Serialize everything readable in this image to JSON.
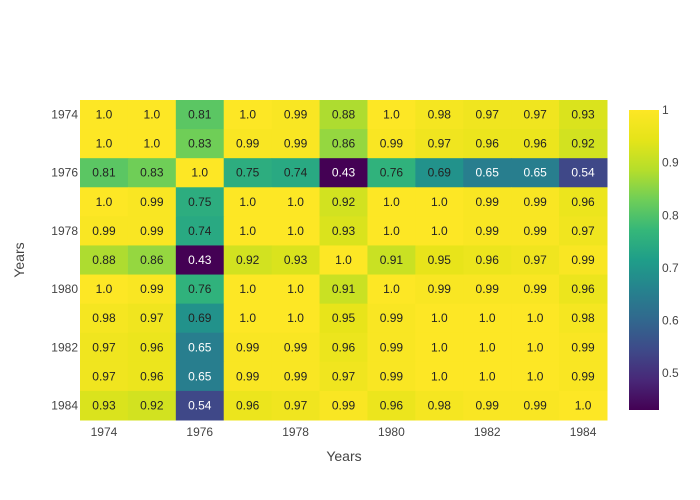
{
  "chart_data": {
    "type": "heatmap",
    "xlabel": "Years",
    "ylabel": "Years",
    "x": [
      1974,
      1975,
      1976,
      1977,
      1978,
      1979,
      1980,
      1981,
      1982,
      1983,
      1984
    ],
    "y": [
      1974,
      1975,
      1976,
      1977,
      1978,
      1979,
      1980,
      1981,
      1982,
      1983,
      1984
    ],
    "x_tick_labels": [
      "1974",
      "1976",
      "1978",
      "1980",
      "1982",
      "1984"
    ],
    "y_tick_labels": [
      "1974",
      "1976",
      "1978",
      "1980",
      "1982",
      "1984"
    ],
    "values": [
      [
        1.0,
        1.0,
        0.81,
        1.0,
        0.99,
        0.88,
        1.0,
        0.98,
        0.97,
        0.97,
        0.93
      ],
      [
        1.0,
        1.0,
        0.83,
        0.99,
        0.99,
        0.86,
        0.99,
        0.97,
        0.96,
        0.96,
        0.92
      ],
      [
        0.81,
        0.83,
        1.0,
        0.75,
        0.74,
        0.43,
        0.76,
        0.69,
        0.65,
        0.65,
        0.54
      ],
      [
        1.0,
        0.99,
        0.75,
        1.0,
        1.0,
        0.92,
        1.0,
        1.0,
        0.99,
        0.99,
        0.96
      ],
      [
        0.99,
        0.99,
        0.74,
        1.0,
        1.0,
        0.93,
        1.0,
        1.0,
        0.99,
        0.99,
        0.97
      ],
      [
        0.88,
        0.86,
        0.43,
        0.92,
        0.93,
        1.0,
        0.91,
        0.95,
        0.96,
        0.97,
        0.99
      ],
      [
        1.0,
        0.99,
        0.76,
        1.0,
        1.0,
        0.91,
        1.0,
        0.99,
        0.99,
        0.99,
        0.96
      ],
      [
        0.98,
        0.97,
        0.69,
        1.0,
        1.0,
        0.95,
        0.99,
        1.0,
        1.0,
        1.0,
        0.98
      ],
      [
        0.97,
        0.96,
        0.65,
        0.99,
        0.99,
        0.96,
        0.99,
        1.0,
        1.0,
        1.0,
        0.99
      ],
      [
        0.97,
        0.96,
        0.65,
        0.99,
        0.99,
        0.97,
        0.99,
        1.0,
        1.0,
        1.0,
        0.99
      ],
      [
        0.93,
        0.92,
        0.54,
        0.96,
        0.97,
        0.99,
        0.96,
        0.98,
        0.99,
        0.99,
        1.0
      ]
    ],
    "cell_labels": [
      [
        "1.0",
        "1.0",
        "0.81",
        "1.0",
        "0.99",
        "0.88",
        "1.0",
        "0.98",
        "0.97",
        "0.97",
        "0.93"
      ],
      [
        "1.0",
        "1.0",
        "0.83",
        "0.99",
        "0.99",
        "0.86",
        "0.99",
        "0.97",
        "0.96",
        "0.96",
        "0.92"
      ],
      [
        "0.81",
        "0.83",
        "1.0",
        "0.75",
        "0.74",
        "0.43",
        "0.76",
        "0.69",
        "0.65",
        "0.65",
        "0.54"
      ],
      [
        "1.0",
        "0.99",
        "0.75",
        "1.0",
        "1.0",
        "0.92",
        "1.0",
        "1.0",
        "0.99",
        "0.99",
        "0.96"
      ],
      [
        "0.99",
        "0.99",
        "0.74",
        "1.0",
        "1.0",
        "0.93",
        "1.0",
        "1.0",
        "0.99",
        "0.99",
        "0.97"
      ],
      [
        "0.88",
        "0.86",
        "0.43",
        "0.92",
        "0.93",
        "1.0",
        "0.91",
        "0.95",
        "0.96",
        "0.97",
        "0.99"
      ],
      [
        "1.0",
        "0.99",
        "0.76",
        "1.0",
        "1.0",
        "0.91",
        "1.0",
        "0.99",
        "0.99",
        "0.99",
        "0.96"
      ],
      [
        "0.98",
        "0.97",
        "0.69",
        "1.0",
        "1.0",
        "0.95",
        "0.99",
        "1.0",
        "1.0",
        "1.0",
        "0.98"
      ],
      [
        "0.97",
        "0.96",
        "0.65",
        "0.99",
        "0.99",
        "0.96",
        "0.99",
        "1.0",
        "1.0",
        "1.0",
        "0.99"
      ],
      [
        "0.97",
        "0.96",
        "0.65",
        "0.99",
        "0.99",
        "0.97",
        "0.99",
        "1.0",
        "1.0",
        "1.0",
        "0.99"
      ],
      [
        "0.93",
        "0.92",
        "0.54",
        "0.96",
        "0.97",
        "0.99",
        "0.96",
        "0.98",
        "0.99",
        "0.99",
        "1.0"
      ]
    ],
    "zlim": [
      0.43,
      1.0
    ],
    "colorscale": "viridis",
    "colorbar": {
      "tick_values": [
        0.5,
        0.6,
        0.7,
        0.8,
        0.9,
        1.0
      ],
      "tick_labels": [
        "0.5",
        "0.6",
        "0.7",
        "0.8",
        "0.9",
        "1"
      ]
    },
    "grid": false,
    "legend": "none"
  }
}
